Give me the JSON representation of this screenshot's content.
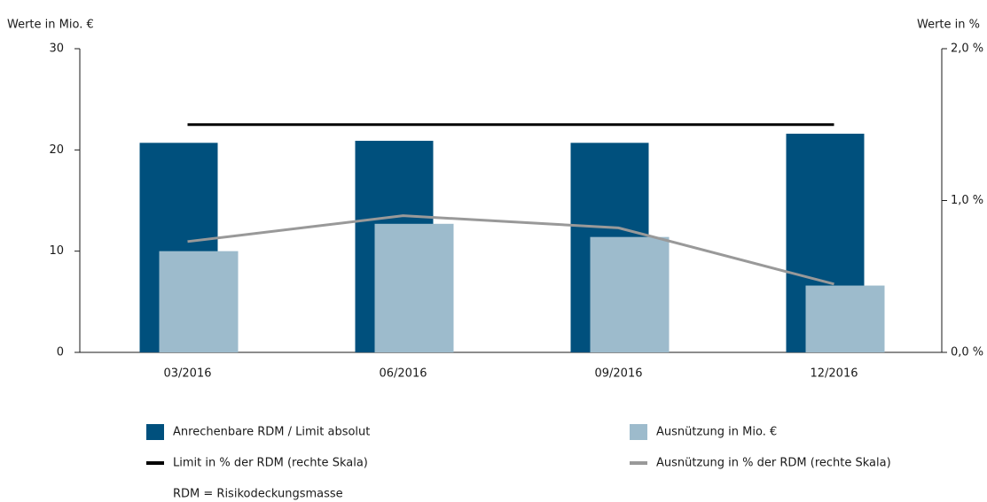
{
  "chart_data": {
    "type": "bar",
    "y_label": "Werte in Mio. €",
    "y2_label": "Werte in %",
    "categories": [
      "03/2016",
      "06/2016",
      "09/2016",
      "12/2016"
    ],
    "ylim": [
      0,
      30
    ],
    "yticks": [
      0,
      10,
      20,
      30
    ],
    "y2lim": [
      0,
      2
    ],
    "y2ticks": [
      {
        "value": 0,
        "label": "0,0 %"
      },
      {
        "value": 1,
        "label": "1,0 %"
      },
      {
        "value": 2,
        "label": "2,0 %"
      }
    ],
    "grid": false,
    "series": [
      {
        "name": "Anrechenbare RDM / Limit absolut",
        "type": "bar",
        "color": "#00507d",
        "values": [
          20.7,
          20.9,
          20.7,
          21.6
        ]
      },
      {
        "name": "Ausnützung in Mio. €",
        "type": "bar",
        "color": "#9dbbcc",
        "values": [
          10.0,
          12.7,
          11.4,
          6.6
        ]
      },
      {
        "name": "Limit in % der RDM (rechte Skala)",
        "type": "line",
        "axis": "y2",
        "color": "#000000",
        "values": [
          1.5,
          1.5,
          1.5,
          1.5
        ]
      },
      {
        "name": "Ausnützung in % der RDM (rechte Skala)",
        "type": "line",
        "axis": "y2",
        "color": "#999999",
        "values": [
          0.73,
          0.9,
          0.82,
          0.45
        ]
      }
    ],
    "note": "RDM = Risikodeckungsmasse"
  }
}
